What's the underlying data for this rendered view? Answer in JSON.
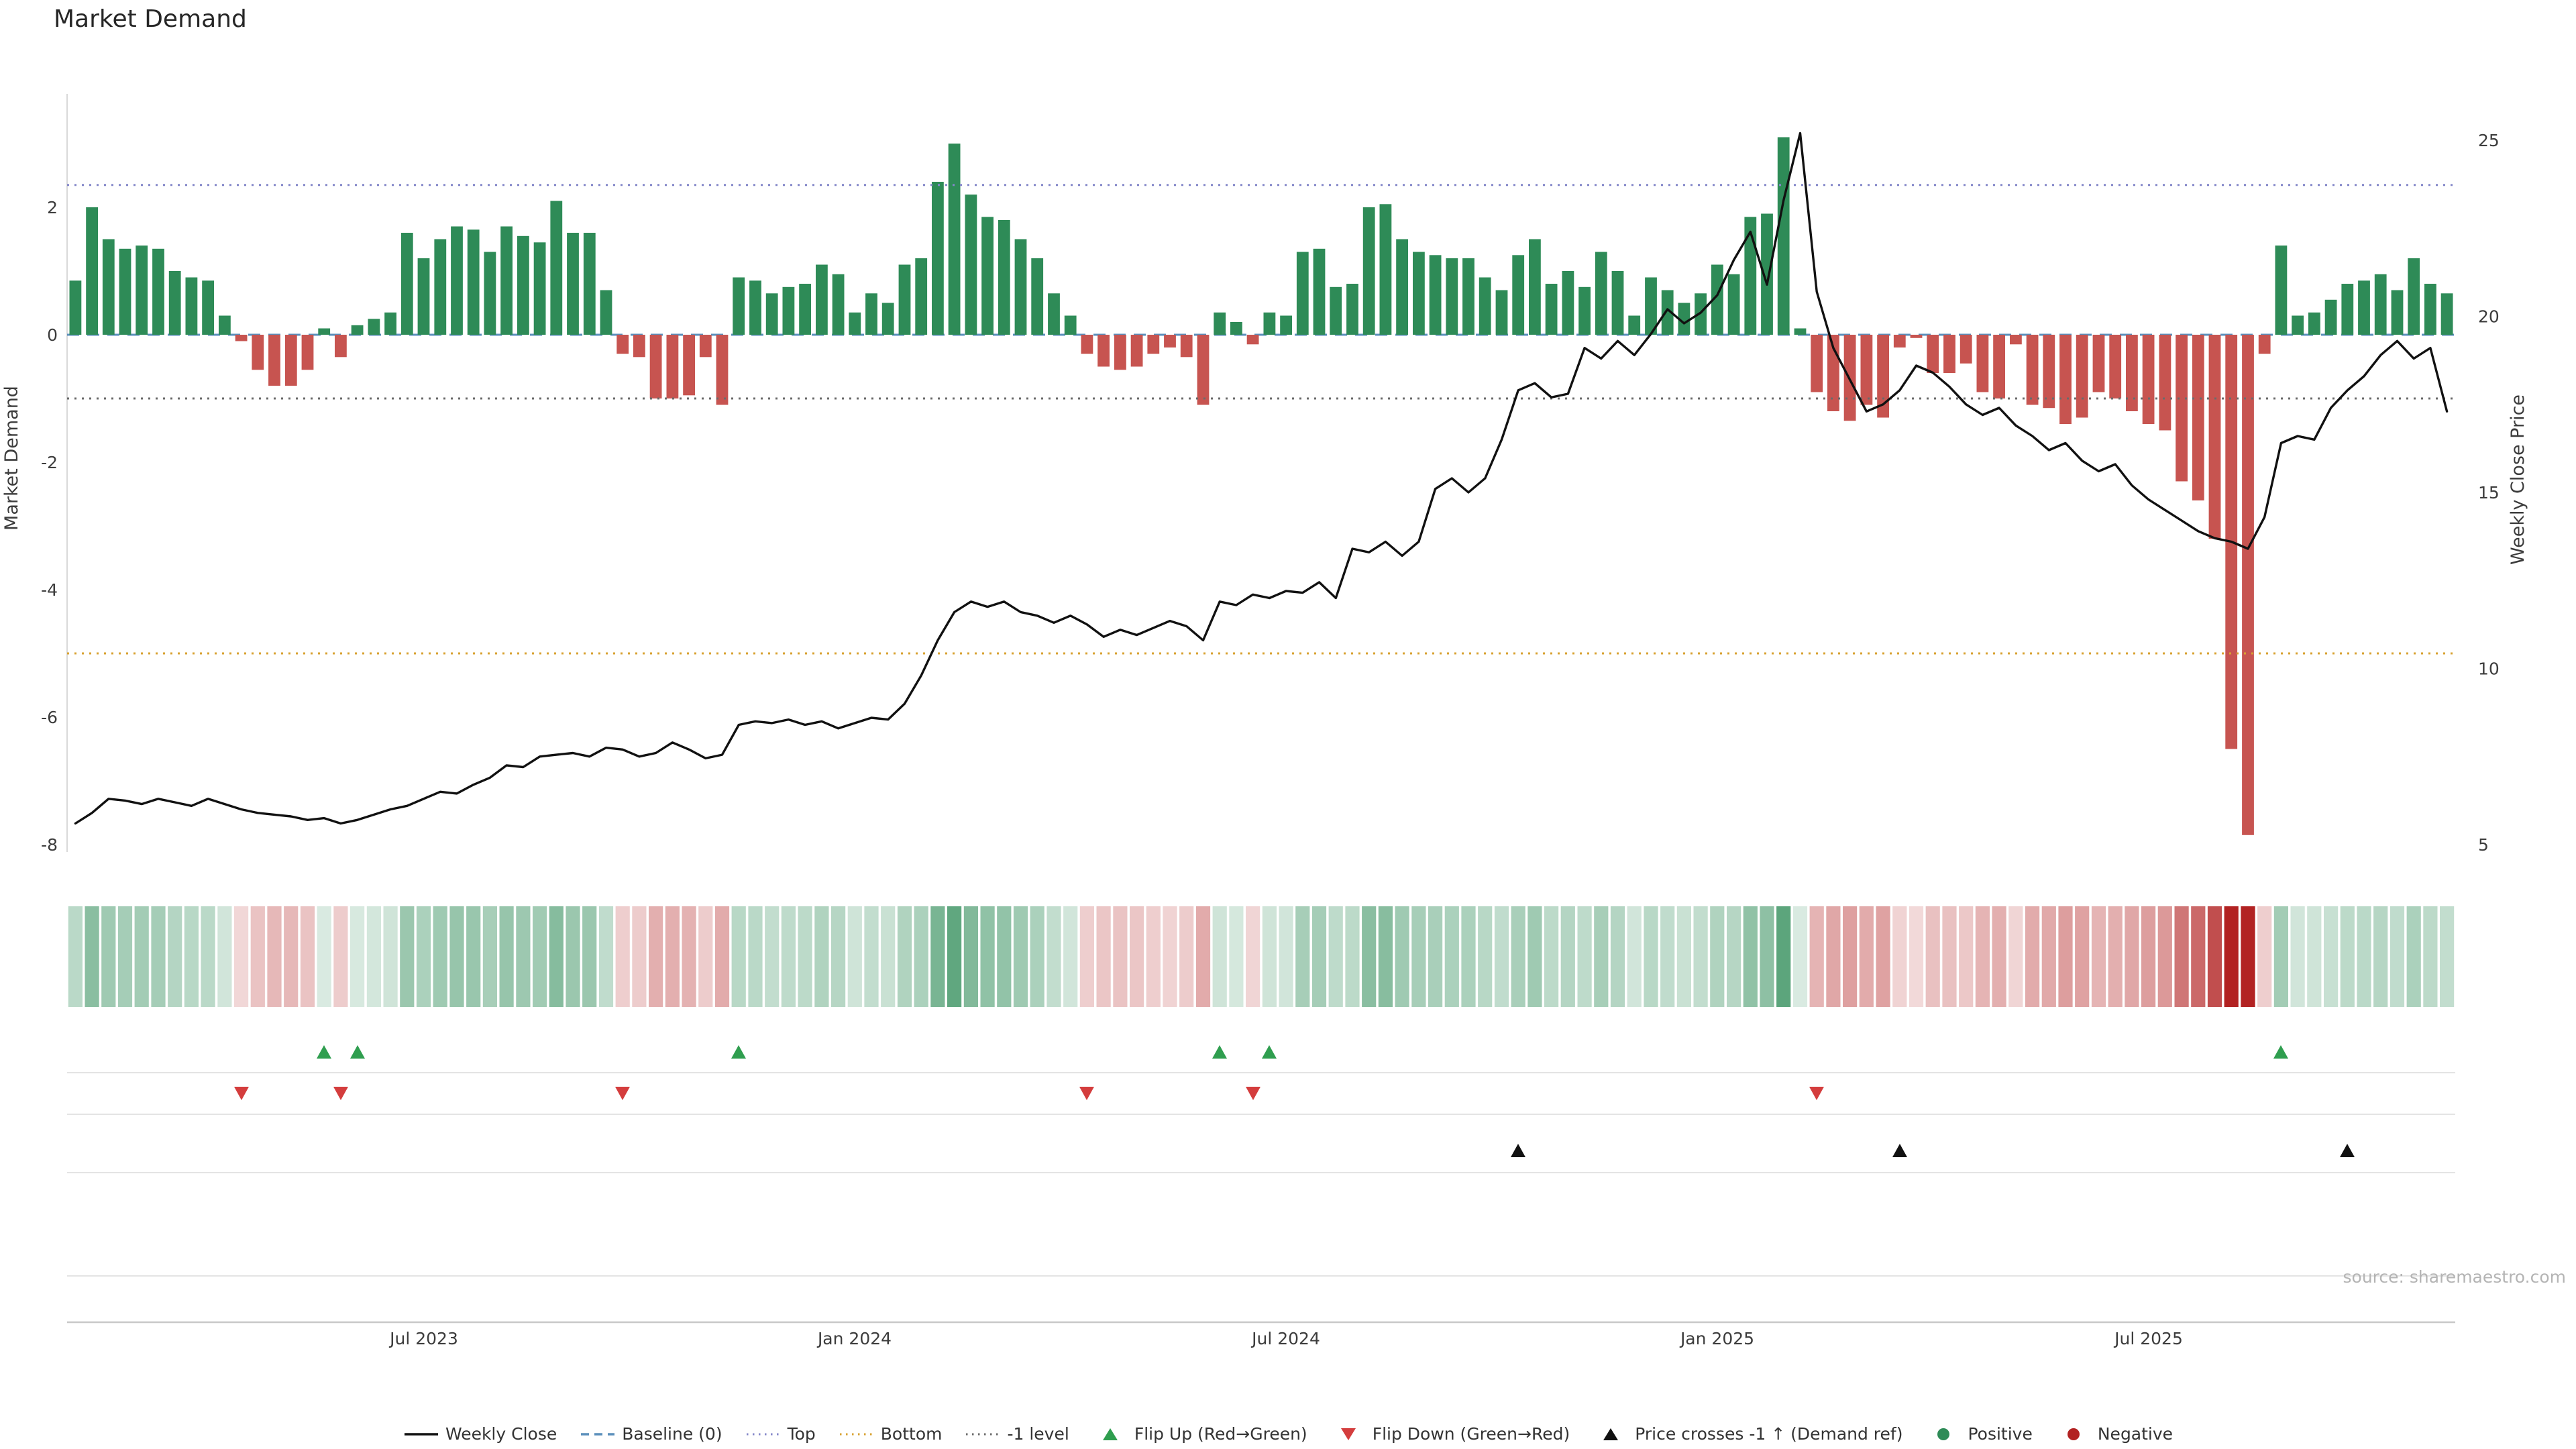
{
  "title": "Market Demand",
  "source": "source: sharemaestro.com",
  "chart_data": {
    "type": "combo_bar_line",
    "frequency": "weekly",
    "n_points": 144,
    "x_ticks": [
      {
        "index": 21,
        "label": "Jul 2023"
      },
      {
        "index": 47,
        "label": "Jan 2024"
      },
      {
        "index": 73,
        "label": "Jul 2024"
      },
      {
        "index": 99,
        "label": "Jan 2025"
      },
      {
        "index": 125,
        "label": "Jul 2025"
      }
    ],
    "left_axis": {
      "label": "Market Demand",
      "ticks": [
        2,
        0,
        -2,
        -4,
        -6,
        -8
      ],
      "range": [
        -8.5,
        3.6
      ]
    },
    "right_axis": {
      "label": "Weekly Close Price",
      "ticks": [
        25,
        20,
        15,
        10,
        5
      ],
      "range": [
        5,
        25
      ]
    },
    "bar_series": {
      "name": "Market Demand",
      "axis": "left",
      "values": [
        0.85,
        2.0,
        1.5,
        1.35,
        1.4,
        1.35,
        1.0,
        0.9,
        0.85,
        0.3,
        -0.1,
        -0.55,
        -0.8,
        -0.8,
        -0.55,
        0.1,
        -0.35,
        0.15,
        0.25,
        0.35,
        1.6,
        1.2,
        1.5,
        1.7,
        1.65,
        1.3,
        1.7,
        1.55,
        1.45,
        2.1,
        1.6,
        1.6,
        0.7,
        -0.3,
        -0.35,
        -1.0,
        -1.0,
        -0.95,
        -0.35,
        -1.1,
        0.9,
        0.85,
        0.65,
        0.75,
        0.8,
        1.1,
        0.95,
        0.35,
        0.65,
        0.5,
        1.1,
        1.2,
        2.4,
        3.0,
        2.2,
        1.85,
        1.8,
        1.5,
        1.2,
        0.65,
        0.3,
        -0.3,
        -0.5,
        -0.55,
        -0.5,
        -0.3,
        -0.2,
        -0.35,
        -1.1,
        0.35,
        0.2,
        -0.15,
        0.35,
        0.3,
        1.3,
        1.35,
        0.75,
        0.8,
        2.0,
        2.05,
        1.5,
        1.3,
        1.25,
        1.2,
        1.2,
        0.9,
        0.7,
        1.25,
        1.5,
        0.8,
        1.0,
        0.75,
        1.3,
        1.0,
        0.3,
        0.9,
        0.7,
        0.5,
        0.65,
        1.1,
        0.95,
        1.85,
        1.9,
        3.1,
        0.1,
        -0.9,
        -1.2,
        -1.35,
        -1.1,
        -1.3,
        -0.2,
        -0.05,
        -0.6,
        -0.6,
        -0.45,
        -0.9,
        -1.0,
        -0.15,
        -1.1,
        -1.15,
        -1.4,
        -1.3,
        -0.9,
        -1.0,
        -1.2,
        -1.4,
        -1.5,
        -2.3,
        -2.6,
        -3.2,
        -6.5,
        -7.85,
        -0.3,
        1.4,
        0.3,
        0.35,
        0.55,
        0.8,
        0.85,
        0.95,
        0.7,
        1.2,
        0.8,
        0.65
      ]
    },
    "line_series": {
      "name": "Weekly Close",
      "axis": "right",
      "values": [
        5.6,
        5.9,
        6.3,
        6.25,
        6.15,
        6.3,
        6.2,
        6.1,
        6.3,
        6.15,
        6.0,
        5.9,
        5.85,
        5.8,
        5.7,
        5.75,
        5.6,
        5.7,
        5.85,
        6.0,
        6.1,
        6.3,
        6.5,
        6.45,
        6.7,
        6.9,
        7.25,
        7.2,
        7.5,
        7.55,
        7.6,
        7.5,
        7.75,
        7.7,
        7.5,
        7.6,
        7.9,
        7.7,
        7.45,
        7.55,
        8.4,
        8.5,
        8.45,
        8.55,
        8.4,
        8.5,
        8.3,
        8.45,
        8.6,
        8.55,
        9.0,
        9.8,
        10.8,
        11.6,
        11.9,
        11.75,
        11.9,
        11.6,
        11.5,
        11.3,
        11.5,
        11.25,
        10.9,
        11.1,
        10.95,
        11.15,
        11.35,
        11.2,
        10.8,
        11.9,
        11.8,
        12.1,
        12.0,
        12.2,
        12.15,
        12.45,
        12.0,
        13.4,
        13.3,
        13.6,
        13.2,
        13.6,
        15.1,
        15.4,
        15.0,
        15.4,
        16.5,
        17.9,
        18.1,
        17.7,
        17.8,
        19.1,
        18.8,
        19.3,
        18.9,
        19.5,
        20.2,
        19.8,
        20.1,
        20.6,
        21.6,
        22.4,
        20.9,
        23.3,
        25.2,
        20.7,
        19.1,
        18.2,
        17.3,
        17.5,
        17.9,
        18.6,
        18.4,
        18.0,
        17.5,
        17.2,
        17.4,
        16.9,
        16.6,
        16.2,
        16.4,
        15.9,
        15.6,
        15.8,
        15.2,
        14.8,
        14.5,
        14.2,
        13.9,
        13.7,
        13.6,
        13.4,
        14.3,
        16.4,
        16.6,
        16.5,
        17.4,
        17.9,
        18.3,
        18.9,
        19.3,
        18.8,
        19.1,
        17.3
      ]
    },
    "reference_lines": [
      {
        "name": "Baseline (0)",
        "value": 0,
        "color": "#5b8fbc",
        "style": "dashed"
      },
      {
        "name": "Top",
        "value": 2.35,
        "color": "#8487c9",
        "style": "dotted"
      },
      {
        "name": "Bottom",
        "value": -5.0,
        "color": "#d8a232",
        "style": "dotted"
      },
      {
        "name": "-1 level",
        "value": -1.0,
        "color": "#6b6b6b",
        "style": "dotted"
      }
    ],
    "markers": {
      "flip_up": {
        "label": "Flip Up (Red→Green)",
        "indices": [
          15,
          17,
          40,
          69,
          72,
          133
        ],
        "color": "#2f9e4f"
      },
      "flip_down": {
        "label": "Flip Down (Green→Red)",
        "indices": [
          10,
          16,
          33,
          61,
          71,
          105
        ],
        "color": "#d43d3d"
      },
      "price_cross": {
        "label": "Price crosses -1 ↑ (Demand ref)",
        "indices": [
          87,
          110,
          137
        ],
        "color": "#111111"
      }
    },
    "heatmap": {
      "name": "demand-intensity-strip",
      "derived_from": "bar_series"
    },
    "colors": {
      "positive": "#2e8b57",
      "negative": "#c75450",
      "line": "#111111",
      "heat_positive_base": "#2e8b57",
      "heat_negative_base": "#b22222"
    }
  },
  "legend": {
    "items": [
      {
        "label": "Weekly Close",
        "swatch": "line",
        "color": "#111111"
      },
      {
        "label": "Baseline (0)",
        "swatch": "dashed-line",
        "color": "#5b8fbc"
      },
      {
        "label": "Top",
        "swatch": "dotted-line",
        "color": "#8487c9"
      },
      {
        "label": "Bottom",
        "swatch": "dotted-line",
        "color": "#d8a232"
      },
      {
        "label": "-1 level",
        "swatch": "dotted-line",
        "color": "#6b6b6b"
      },
      {
        "label": "Flip Up (Red→Green)",
        "swatch": "triangle-up",
        "color": "#2f9e4f"
      },
      {
        "label": "Flip Down (Green→Red)",
        "swatch": "triangle-down",
        "color": "#d43d3d"
      },
      {
        "label": "Price crosses -1 ↑ (Demand ref)",
        "swatch": "triangle-up",
        "color": "#111111"
      },
      {
        "label": "Positive",
        "swatch": "dot",
        "color": "#2e8b57"
      },
      {
        "label": "Negative",
        "swatch": "dot",
        "color": "#b22222"
      }
    ]
  }
}
